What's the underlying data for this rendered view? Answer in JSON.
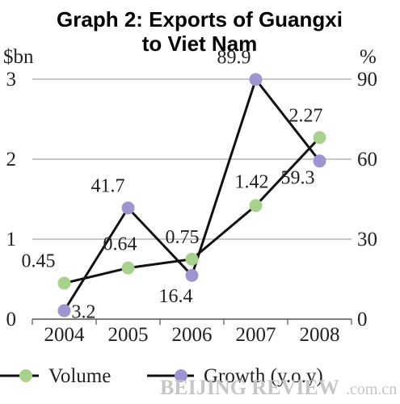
{
  "chart_data": {
    "type": "line",
    "title_line1": "Graph 2: Exports of Guangxi",
    "title_line2": "to Viet Nam",
    "left_unit": "$bn",
    "right_unit": "%",
    "categories": [
      "2004",
      "2005",
      "2006",
      "2007",
      "2008"
    ],
    "left_ticks": [
      "0",
      "1",
      "2",
      "3"
    ],
    "right_ticks": [
      "0",
      "30",
      "60",
      "90"
    ],
    "ylim_left": [
      0,
      3
    ],
    "ylim_right": [
      0,
      90
    ],
    "grid": true,
    "legend_position": "bottom",
    "series": [
      {
        "name": "Volume",
        "axis": "left",
        "values": [
          0.45,
          0.64,
          0.75,
          1.42,
          2.27
        ],
        "labels": [
          "0.45",
          "0.64",
          "0.75",
          "1.42",
          "2.27"
        ],
        "marker_color": "#a9d18e",
        "line_color": "#111111"
      },
      {
        "name": "Growth (y.o.y)",
        "axis": "right",
        "values": [
          3.2,
          41.7,
          16.4,
          89.9,
          59.3
        ],
        "labels": [
          "3.2",
          "41.7",
          "16.4",
          "89.9",
          "59.3"
        ],
        "marker_color": "#9f94d0",
        "line_color": "#111111"
      }
    ]
  },
  "watermark": {
    "brand": "BEIJING REVIEW",
    "domain": ".com.cn"
  }
}
